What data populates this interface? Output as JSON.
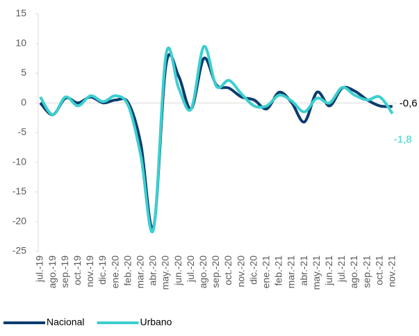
{
  "chart_data": {
    "type": "line",
    "categories": [
      "jul.-19",
      "ago.-19",
      "sep.-19",
      "oct.-19",
      "nov.-19",
      "dic.-19",
      "ene.-20",
      "feb.-20",
      "mar.-20",
      "abr.-20",
      "may.-20",
      "jun.-20",
      "jul.-20",
      "ago.-20",
      "sep.-20",
      "oct.-20",
      "nov.-20",
      "dic.-20",
      "ene.-21",
      "feb.-21",
      "mar.-21",
      "abr.-21",
      "may.-21",
      "jun.-21",
      "jul.-21",
      "ago.-21",
      "sep.-21",
      "oct.-21",
      "nov.-21"
    ],
    "series": [
      {
        "name": "Nacional",
        "color": "#0b3c6e",
        "values": [
          0,
          -2,
          0.8,
          0,
          1,
          0,
          0.5,
          0,
          -7,
          -21,
          6.5,
          4.5,
          -1,
          7.5,
          3,
          2.5,
          1,
          0.5,
          -1,
          1.8,
          0,
          -3.2,
          1.8,
          -0.5,
          2.5,
          2,
          0.5,
          -0.5,
          -0.6
        ],
        "value_labels": [
          null,
          null,
          null,
          null,
          null,
          null,
          null,
          null,
          null,
          null,
          null,
          null,
          null,
          null,
          null,
          null,
          null,
          null,
          null,
          null,
          null,
          null,
          null,
          null,
          null,
          null,
          null,
          null,
          "-0,6"
        ]
      },
      {
        "name": "Urbano",
        "color": "#3ccfcf",
        "values": [
          1,
          -2,
          1,
          -0.5,
          1.2,
          0.2,
          1.2,
          -0.5,
          -9,
          -21.3,
          8.2,
          2.5,
          -1,
          9.5,
          2.8,
          3.8,
          1.5,
          -0.5,
          -0.5,
          1.3,
          0.3,
          -1.5,
          0.8,
          0,
          2.6,
          1.3,
          0.5,
          1,
          -1.8
        ],
        "value_labels": [
          null,
          null,
          null,
          null,
          null,
          null,
          null,
          null,
          null,
          null,
          null,
          null,
          null,
          null,
          null,
          null,
          null,
          null,
          null,
          null,
          null,
          null,
          null,
          null,
          null,
          null,
          null,
          null,
          "-1,8"
        ]
      }
    ],
    "ylim": [
      -25,
      15
    ],
    "yticks": [
      15,
      10,
      5,
      0,
      -5,
      -10,
      -15,
      -20,
      -25
    ],
    "legend": "bottom"
  }
}
